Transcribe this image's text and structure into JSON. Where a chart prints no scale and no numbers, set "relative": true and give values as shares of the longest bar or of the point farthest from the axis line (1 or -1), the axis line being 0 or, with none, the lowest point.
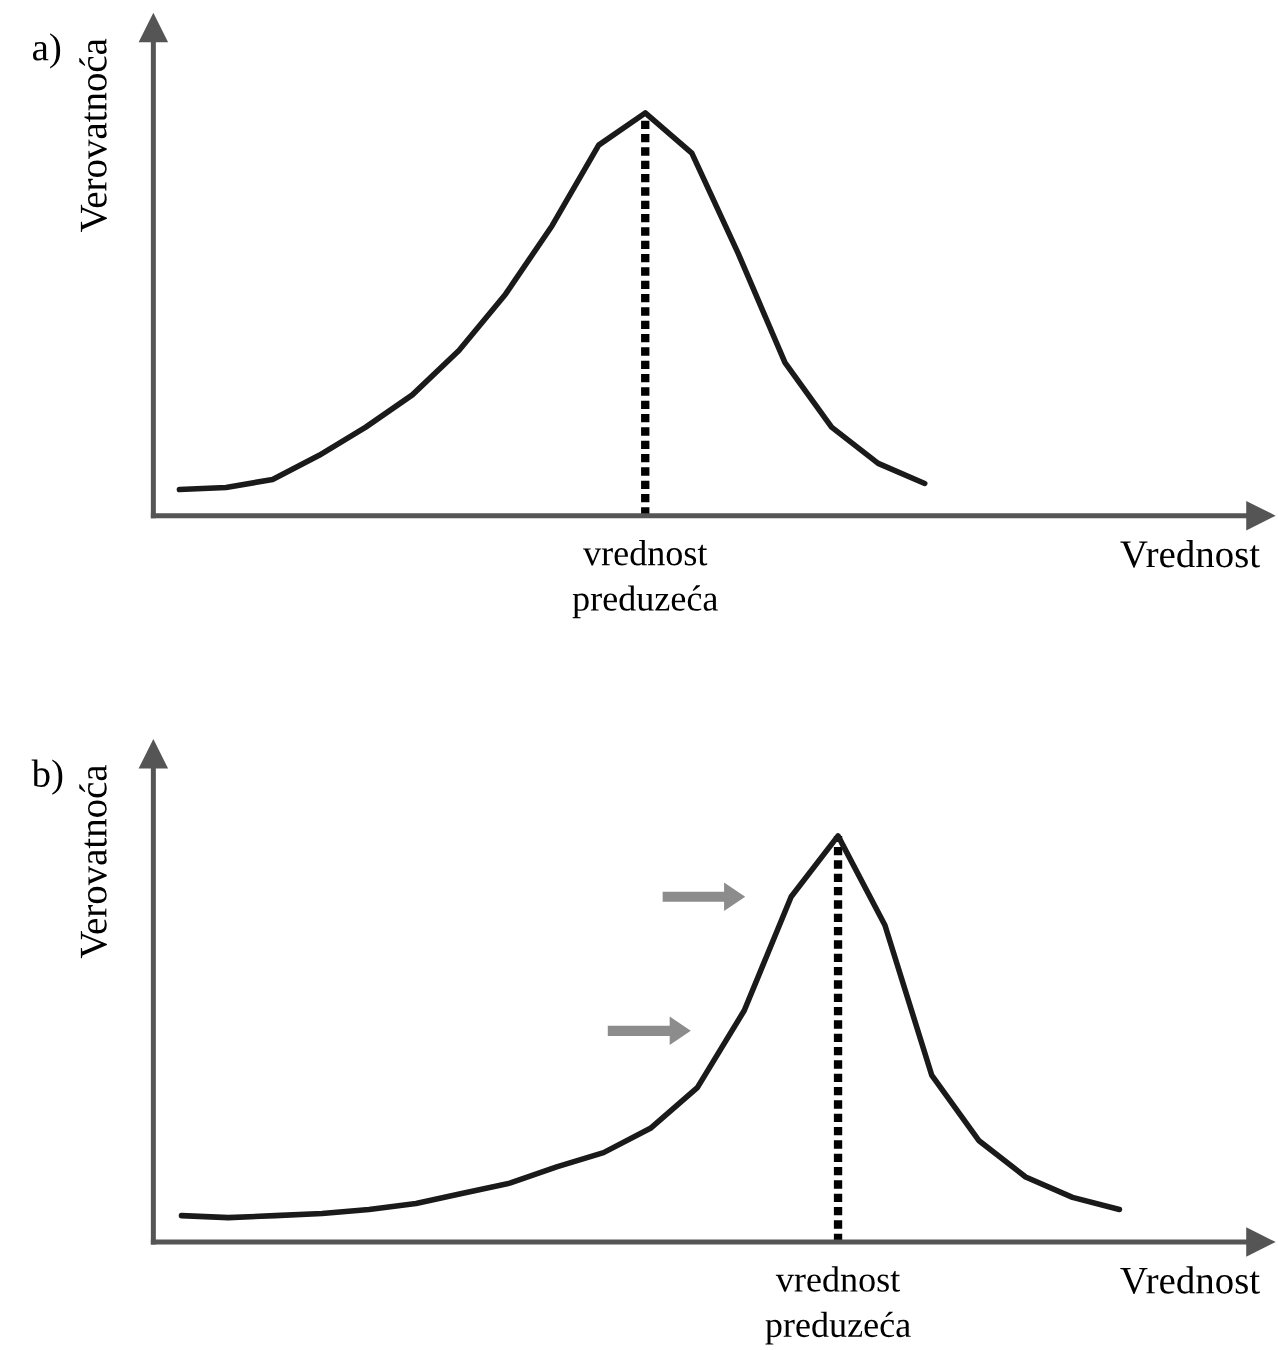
{
  "chart_data": [
    {
      "type": "line",
      "title": "a)",
      "xlabel": "Vrednost",
      "ylabel": "Verovatnoća",
      "relative": true,
      "marker": "none",
      "line_style": "solid",
      "categories": [
        null,
        null,
        null,
        null,
        null,
        null,
        null,
        null,
        null,
        null,
        null,
        null,
        null,
        null,
        null,
        null,
        null
      ],
      "annotations": [
        "vrednost preduzeća"
      ],
      "series": [
        {
          "color": "#1a1a1a",
          "values": [
            0.065,
            0.07,
            0.09,
            0.15,
            0.22,
            0.3,
            0.41,
            0.55,
            0.72,
            0.92,
            1.0,
            0.9,
            0.65,
            0.38,
            0.22,
            0.13,
            0.08
          ]
        }
      ]
    },
    {
      "type": "line",
      "title": "b)",
      "xlabel": "Vrednost",
      "ylabel": "Verovatnoća",
      "relative": true,
      "marker": "none",
      "line_style": "solid",
      "categories": [
        null,
        null,
        null,
        null,
        null,
        null,
        null,
        null,
        null,
        null,
        null,
        null,
        null,
        null,
        null,
        null,
        null,
        null,
        null,
        null,
        null
      ],
      "annotations": [
        "vrednost preduzeća"
      ],
      "series": [
        {
          "color": "#1a1a1a",
          "values": [
            0.065,
            0.06,
            0.065,
            0.07,
            0.08,
            0.095,
            0.12,
            0.145,
            0.185,
            0.22,
            0.28,
            0.38,
            0.57,
            0.85,
            1.0,
            0.78,
            0.41,
            0.25,
            0.16,
            0.11,
            0.08
          ]
        }
      ]
    }
  ]
}
